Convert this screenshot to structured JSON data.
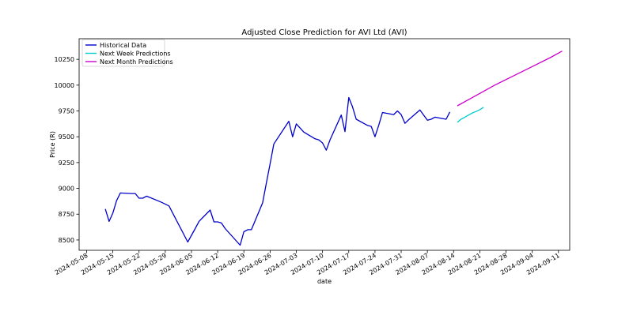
{
  "chart_data": {
    "type": "line",
    "title": "Adjusted Close Prediction for AVI Ltd (AVI)",
    "xlabel": "date",
    "ylabel": "Price (R)",
    "x_axis_type": "date",
    "xlim": [
      "2024-05-06",
      "2024-09-14"
    ],
    "ylim": [
      8400,
      10450
    ],
    "x_ticks": [
      "2024-05-08",
      "2024-05-15",
      "2024-05-22",
      "2024-05-29",
      "2024-06-05",
      "2024-06-12",
      "2024-06-19",
      "2024-06-26",
      "2024-07-03",
      "2024-07-10",
      "2024-07-17",
      "2024-07-24",
      "2024-07-31",
      "2024-08-07",
      "2024-08-14",
      "2024-08-21",
      "2024-08-28",
      "2024-09-04",
      "2024-09-11"
    ],
    "y_ticks": [
      8500,
      8750,
      9000,
      9250,
      9500,
      9750,
      10000,
      10250
    ],
    "y_tick_labels": [
      "8500",
      "8750",
      "9000",
      "9250",
      "9500",
      "9750",
      "10000",
      "10250"
    ],
    "grid": false,
    "legend_position": "top-left",
    "series": [
      {
        "name": "Historical Data",
        "color": "#0000cc",
        "x": [
          "2024-05-13",
          "2024-05-14",
          "2024-05-15",
          "2024-05-16",
          "2024-05-17",
          "2024-05-20",
          "2024-05-21",
          "2024-05-22",
          "2024-05-23",
          "2024-05-24",
          "2024-05-27",
          "2024-05-28",
          "2024-05-30",
          "2024-05-31",
          "2024-06-04",
          "2024-06-05",
          "2024-06-06",
          "2024-06-07",
          "2024-06-10",
          "2024-06-11",
          "2024-06-12",
          "2024-06-13",
          "2024-06-14",
          "2024-06-18",
          "2024-06-19",
          "2024-06-20",
          "2024-06-21",
          "2024-06-24",
          "2024-06-25",
          "2024-06-26",
          "2024-06-27",
          "2024-07-01",
          "2024-07-02",
          "2024-07-03",
          "2024-07-04",
          "2024-07-05",
          "2024-07-08",
          "2024-07-09",
          "2024-07-10",
          "2024-07-11",
          "2024-07-12",
          "2024-07-15",
          "2024-07-16",
          "2024-07-17",
          "2024-07-18",
          "2024-07-19",
          "2024-07-22",
          "2024-07-23",
          "2024-07-24",
          "2024-07-25",
          "2024-07-26",
          "2024-07-29",
          "2024-07-30",
          "2024-07-31",
          "2024-08-01",
          "2024-08-02",
          "2024-08-05",
          "2024-08-06",
          "2024-08-07",
          "2024-08-08",
          "2024-08-09",
          "2024-08-12",
          "2024-08-13"
        ],
        "y": [
          8800,
          8680,
          8760,
          8880,
          8955,
          8950,
          8950,
          8905,
          8905,
          8925,
          8880,
          8865,
          8830,
          8760,
          8480,
          8545,
          8610,
          8680,
          8790,
          8675,
          8675,
          8665,
          8610,
          8450,
          8580,
          8600,
          8600,
          8860,
          9050,
          9240,
          9430,
          9650,
          9500,
          9625,
          9585,
          9545,
          9480,
          9470,
          9440,
          9370,
          9470,
          9710,
          9550,
          9880,
          9790,
          9670,
          9610,
          9600,
          9500,
          9610,
          9735,
          9715,
          9750,
          9715,
          9630,
          9665,
          9760,
          9710,
          9660,
          9670,
          9690,
          9670,
          9740
        ],
        "_note": "x values for trailing points continue below"
      },
      {
        "name": "Next Week Predictions",
        "color": "#00cccc",
        "x": [
          "2024-08-15",
          "2024-08-16",
          "2024-08-17",
          "2024-08-18",
          "2024-08-19",
          "2024-08-20",
          "2024-08-21",
          "2024-08-22"
        ],
        "y": [
          9640,
          9670,
          9690,
          9710,
          9730,
          9745,
          9762,
          9785
        ]
      },
      {
        "name": "Next Month Predictions",
        "color": "#cc00cc",
        "x": [
          "2024-08-15",
          "2024-08-20",
          "2024-08-25",
          "2024-08-30",
          "2024-09-04",
          "2024-09-09",
          "2024-09-12"
        ],
        "y": [
          9800,
          9900,
          10000,
          10090,
          10180,
          10270,
          10330
        ]
      }
    ]
  }
}
